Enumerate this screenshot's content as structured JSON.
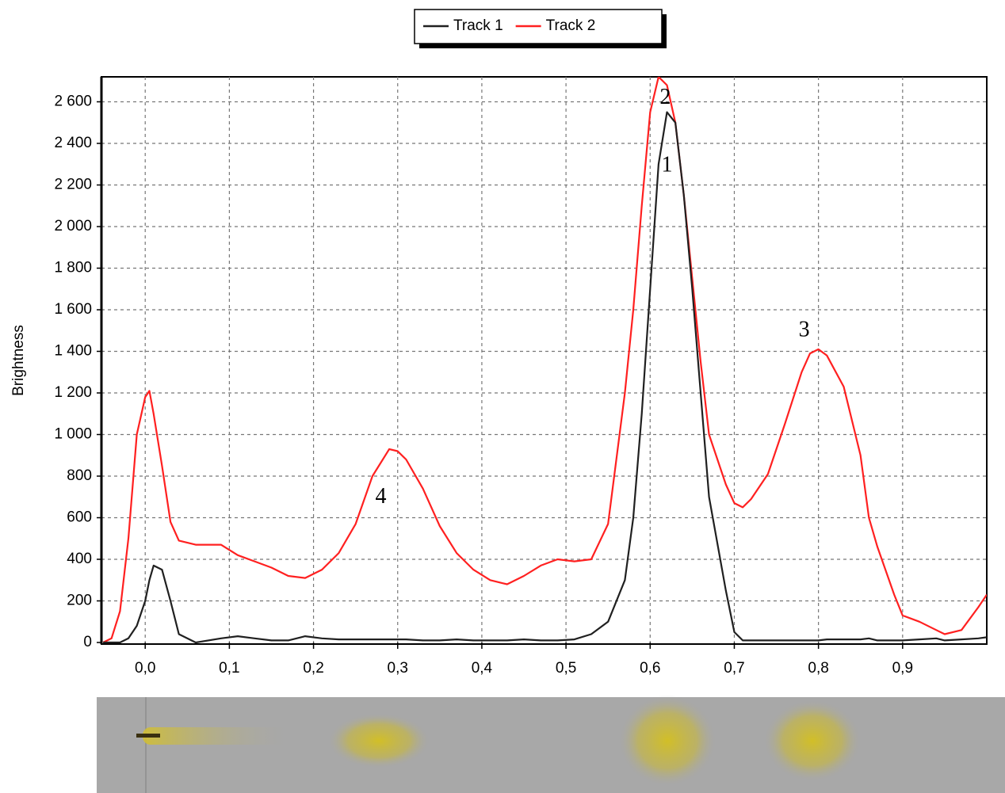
{
  "chart_data": {
    "type": "line",
    "y_label": "Brightness",
    "legend": "top",
    "grid": true,
    "xlim": [
      -0.052,
      1.0
    ],
    "ylim": [
      0,
      2720
    ],
    "xticks": [
      {
        "value": 0,
        "label": "0,0"
      },
      {
        "value": 0.1,
        "label": "0,1"
      },
      {
        "value": 0.2,
        "label": "0,2"
      },
      {
        "value": 0.3,
        "label": "0,3"
      },
      {
        "value": 0.4,
        "label": "0,4"
      },
      {
        "value": 0.5,
        "label": "0,5"
      },
      {
        "value": 0.6,
        "label": "0,6"
      },
      {
        "value": 0.7,
        "label": "0,7"
      },
      {
        "value": 0.8,
        "label": "0,8"
      },
      {
        "value": 0.9,
        "label": "0,9"
      }
    ],
    "yticks": [
      0,
      200,
      400,
      600,
      800,
      {
        "value": 1000,
        "label": "1 000"
      },
      {
        "value": 1200,
        "label": "1 200"
      },
      {
        "value": 1400,
        "label": "1 400"
      },
      {
        "value": 1600,
        "label": "1 600"
      },
      {
        "value": 1800,
        "label": "1 800"
      },
      {
        "value": 2000,
        "label": "2 000"
      },
      {
        "value": 2200,
        "label": "2 200"
      },
      {
        "value": 2400,
        "label": "2 400"
      },
      {
        "value": 2600,
        "label": "2 600"
      }
    ],
    "x": [
      -0.05,
      -0.04,
      -0.03,
      -0.02,
      -0.01,
      0,
      0.005,
      0.01,
      0.02,
      0.03,
      0.04,
      0.06,
      0.09,
      0.11,
      0.13,
      0.15,
      0.17,
      0.19,
      0.21,
      0.23,
      0.25,
      0.27,
      0.29,
      0.3,
      0.31,
      0.33,
      0.35,
      0.37,
      0.39,
      0.41,
      0.43,
      0.45,
      0.47,
      0.49,
      0.51,
      0.53,
      0.55,
      0.57,
      0.58,
      0.59,
      0.6,
      0.61,
      0.62,
      0.63,
      0.64,
      0.65,
      0.66,
      0.67,
      0.69,
      0.7,
      0.71,
      0.72,
      0.74,
      0.76,
      0.78,
      0.79,
      0.8,
      0.81,
      0.83,
      0.85,
      0.86,
      0.87,
      0.89,
      0.9,
      0.92,
      0.94,
      0.95,
      0.97,
      0.99,
      1.0
    ],
    "series": [
      {
        "name": "Track 1",
        "color": "#202020",
        "values": [
          0,
          0,
          0,
          20,
          80,
          200,
          300,
          370,
          350,
          200,
          40,
          0,
          20,
          30,
          20,
          10,
          10,
          30,
          20,
          15,
          15,
          15,
          15,
          15,
          15,
          10,
          10,
          15,
          10,
          10,
          10,
          15,
          10,
          10,
          15,
          40,
          100,
          300,
          600,
          1100,
          1700,
          2300,
          2550,
          2500,
          2150,
          1700,
          1200,
          700,
          250,
          50,
          10,
          10,
          10,
          10,
          10,
          10,
          10,
          15,
          15,
          15,
          20,
          10,
          10,
          10,
          15,
          20,
          10,
          15,
          20,
          25
        ]
      },
      {
        "name": "Track 2",
        "color": "#ff2020",
        "values": [
          0,
          20,
          150,
          500,
          1000,
          1180,
          1210,
          1100,
          850,
          580,
          490,
          470,
          470,
          420,
          390,
          360,
          320,
          310,
          350,
          430,
          570,
          800,
          930,
          920,
          880,
          740,
          560,
          430,
          350,
          300,
          280,
          320,
          370,
          400,
          390,
          400,
          570,
          1200,
          1600,
          2100,
          2550,
          2720,
          2680,
          2500,
          2150,
          1750,
          1350,
          1000,
          760,
          670,
          650,
          690,
          810,
          1050,
          1300,
          1390,
          1410,
          1380,
          1230,
          900,
          600,
          460,
          230,
          130,
          100,
          60,
          40,
          60,
          170,
          230
        ]
      }
    ],
    "annotations": [
      {
        "text": "2",
        "x": 0.618,
        "y": 2614
      },
      {
        "text": "1",
        "x": 0.62,
        "y": 2290
      },
      {
        "text": "3",
        "x": 0.783,
        "y": 1496
      },
      {
        "text": "4",
        "x": 0.28,
        "y": 695
      }
    ]
  }
}
